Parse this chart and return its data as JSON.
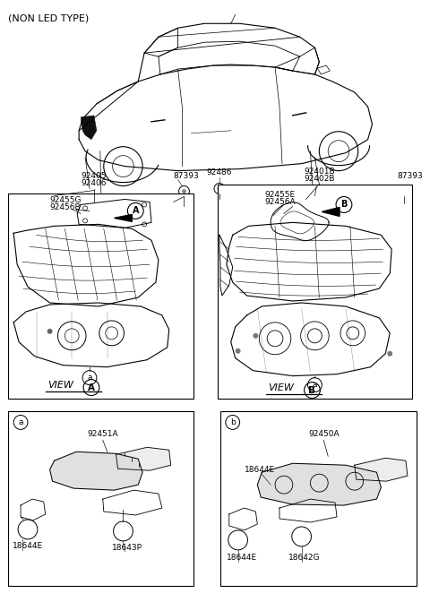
{
  "bg_color": "#ffffff",
  "lc": "#000000",
  "tc": "#000000",
  "title": "(NON LED TYPE)",
  "fs_title": 8,
  "fs_label": 6.5,
  "fs_view": 8,
  "parts_left_above": [
    "92405",
    "92406"
  ],
  "parts_right_above": [
    "92401B",
    "92402B"
  ],
  "part_87393": "87393",
  "part_92486": "92486",
  "part_92455G_92456B": [
    "92455G",
    "92456B"
  ],
  "part_92455E_92456A": [
    "92455E",
    "92456A"
  ],
  "view_a": "VIEW",
  "view_b": "VIEW",
  "label_A": "A",
  "label_B": "B",
  "label_a": "a",
  "label_b": "b",
  "part_92451A": "92451A",
  "part_18644E_L": "18644E",
  "part_18643P": "18643P",
  "part_92450A": "92450A",
  "part_18644E_R": "18644E",
  "part_18642G": "18642G"
}
